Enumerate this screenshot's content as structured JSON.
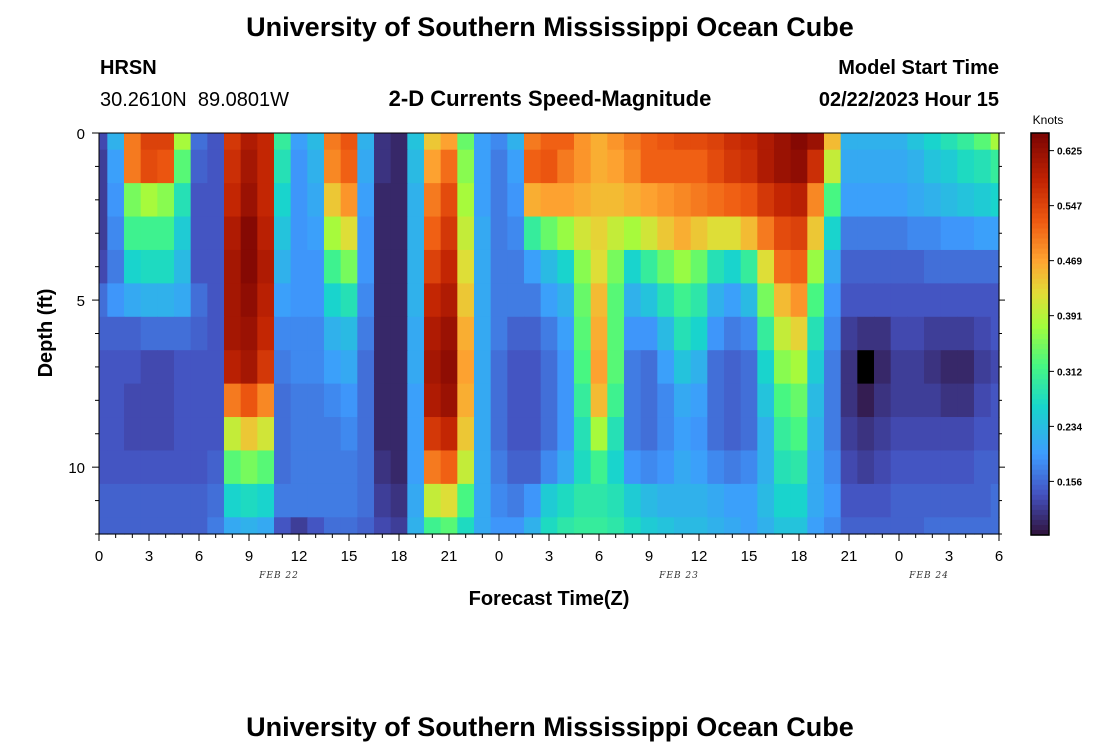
{
  "page": {
    "title_top": "University of Southern Mississippi Ocean Cube",
    "title_bottom": "University of Southern Mississippi Ocean Cube"
  },
  "station": {
    "name": "HRSN",
    "coords": "30.2610N  89.0801W"
  },
  "plot_title": "2-D Currents Speed-Magnitude",
  "model_start": {
    "label": "Model Start Time",
    "value": "02/22/2023 Hour 15"
  },
  "chart_data": {
    "type": "heatmap",
    "title": "2-D Currents Speed-Magnitude",
    "xlabel": "Forecast Time(Z)",
    "ylabel": "Depth (ft)",
    "x_tick_labels": [
      "0",
      "3",
      "6",
      "9",
      "12",
      "15",
      "18",
      "21",
      "0",
      "3",
      "6",
      "9",
      "12",
      "15",
      "18",
      "21",
      "0",
      "3",
      "6"
    ],
    "x_tick_hours": [
      0,
      3,
      6,
      9,
      12,
      15,
      18,
      21,
      24,
      27,
      30,
      33,
      36,
      39,
      42,
      45,
      48,
      51,
      54
    ],
    "date_labels": [
      {
        "text": "FEB 22",
        "hour": 12
      },
      {
        "text": "FEB 23",
        "hour": 36
      },
      {
        "text": "FEB 24",
        "hour": 51
      }
    ],
    "x_range_hours": [
      0,
      54
    ],
    "y_tick_labels": [
      "0",
      "5",
      "10"
    ],
    "y_tick_values": [
      0,
      5,
      10
    ],
    "y_range_ft": [
      0,
      12
    ],
    "colorbar": {
      "label": "Knots",
      "tick_labels": [
        "0.625",
        "0.547",
        "0.469",
        "0.391",
        "0.312",
        "0.234",
        "0.156"
      ],
      "tick_values": [
        0.625,
        0.547,
        0.469,
        0.391,
        0.312,
        0.234,
        0.156
      ],
      "range": [
        0.08,
        0.65
      ]
    },
    "grid": {
      "hours": [
        0,
        1,
        2,
        3,
        4,
        5,
        6,
        7,
        8,
        9,
        10,
        11,
        12,
        13,
        14,
        15,
        16,
        17,
        18,
        19,
        20,
        21,
        22,
        23,
        24,
        25,
        26,
        27,
        28,
        29,
        30,
        31,
        32,
        33,
        34,
        35,
        36,
        37,
        38,
        39,
        40,
        41,
        42,
        43,
        44,
        45,
        46,
        47,
        48,
        49,
        50,
        51,
        52,
        53,
        54
      ],
      "depths_ft": [
        0,
        1,
        2,
        3,
        4,
        5,
        6,
        7,
        8,
        9,
        10,
        11,
        12
      ],
      "speed_knots_note": "values[depth_index][hour_index]; see series below",
      "series": [
        {
          "depth_ft": 0,
          "values": [
            0.13,
            0.22,
            0.5,
            0.55,
            0.55,
            0.38,
            0.16,
            0.14,
            0.56,
            0.6,
            0.58,
            0.3,
            0.2,
            0.23,
            0.5,
            0.53,
            0.22,
            0.11,
            0.1,
            0.24,
            0.44,
            0.47,
            0.34,
            0.2,
            0.18,
            0.22,
            0.5,
            0.52,
            0.52,
            0.48,
            0.46,
            0.48,
            0.5,
            0.52,
            0.53,
            0.54,
            0.54,
            0.55,
            0.57,
            0.58,
            0.6,
            0.62,
            0.64,
            0.62,
            0.45,
            0.22,
            0.22,
            0.22,
            0.22,
            0.24,
            0.26,
            0.28,
            0.3,
            0.33,
            0.38
          ]
        },
        {
          "depth_ft": 1,
          "values": [
            0.12,
            0.2,
            0.5,
            0.54,
            0.53,
            0.33,
            0.15,
            0.14,
            0.57,
            0.61,
            0.58,
            0.28,
            0.19,
            0.22,
            0.49,
            0.52,
            0.21,
            0.11,
            0.1,
            0.23,
            0.47,
            0.51,
            0.36,
            0.2,
            0.17,
            0.2,
            0.52,
            0.53,
            0.5,
            0.48,
            0.46,
            0.47,
            0.49,
            0.52,
            0.52,
            0.52,
            0.52,
            0.54,
            0.56,
            0.57,
            0.6,
            0.62,
            0.63,
            0.57,
            0.4,
            0.21,
            0.21,
            0.21,
            0.21,
            0.22,
            0.24,
            0.25,
            0.27,
            0.28,
            0.3
          ]
        },
        {
          "depth_ft": 2,
          "values": [
            0.12,
            0.19,
            0.35,
            0.38,
            0.36,
            0.28,
            0.14,
            0.14,
            0.58,
            0.62,
            0.58,
            0.26,
            0.19,
            0.21,
            0.44,
            0.48,
            0.2,
            0.1,
            0.1,
            0.22,
            0.5,
            0.54,
            0.38,
            0.2,
            0.17,
            0.19,
            0.46,
            0.47,
            0.47,
            0.46,
            0.45,
            0.45,
            0.46,
            0.47,
            0.48,
            0.49,
            0.5,
            0.51,
            0.52,
            0.53,
            0.56,
            0.58,
            0.59,
            0.49,
            0.32,
            0.2,
            0.2,
            0.2,
            0.2,
            0.21,
            0.22,
            0.23,
            0.24,
            0.25,
            0.26
          ]
        },
        {
          "depth_ft": 3,
          "values": [
            0.12,
            0.18,
            0.31,
            0.31,
            0.31,
            0.25,
            0.14,
            0.14,
            0.6,
            0.64,
            0.59,
            0.24,
            0.19,
            0.2,
            0.38,
            0.42,
            0.19,
            0.1,
            0.1,
            0.22,
            0.52,
            0.56,
            0.4,
            0.21,
            0.17,
            0.18,
            0.3,
            0.34,
            0.37,
            0.41,
            0.43,
            0.4,
            0.38,
            0.41,
            0.44,
            0.46,
            0.44,
            0.42,
            0.42,
            0.45,
            0.5,
            0.54,
            0.55,
            0.44,
            0.26,
            0.17,
            0.17,
            0.17,
            0.17,
            0.18,
            0.18,
            0.19,
            0.19,
            0.2,
            0.2
          ]
        },
        {
          "depth_ft": 4,
          "values": [
            0.13,
            0.17,
            0.26,
            0.27,
            0.27,
            0.23,
            0.14,
            0.14,
            0.61,
            0.64,
            0.6,
            0.22,
            0.19,
            0.19,
            0.31,
            0.35,
            0.19,
            0.1,
            0.1,
            0.22,
            0.55,
            0.58,
            0.42,
            0.21,
            0.17,
            0.17,
            0.2,
            0.23,
            0.26,
            0.36,
            0.42,
            0.35,
            0.26,
            0.3,
            0.34,
            0.37,
            0.34,
            0.28,
            0.26,
            0.3,
            0.42,
            0.51,
            0.52,
            0.37,
            0.21,
            0.15,
            0.15,
            0.15,
            0.15,
            0.15,
            0.16,
            0.16,
            0.16,
            0.16,
            0.16
          ]
        },
        {
          "depth_ft": 5,
          "values": [
            0.16,
            0.19,
            0.21,
            0.22,
            0.22,
            0.21,
            0.16,
            0.14,
            0.61,
            0.63,
            0.59,
            0.2,
            0.19,
            0.19,
            0.26,
            0.28,
            0.18,
            0.1,
            0.1,
            0.22,
            0.58,
            0.6,
            0.44,
            0.21,
            0.17,
            0.17,
            0.17,
            0.2,
            0.22,
            0.34,
            0.45,
            0.33,
            0.22,
            0.24,
            0.28,
            0.31,
            0.29,
            0.22,
            0.2,
            0.23,
            0.35,
            0.45,
            0.48,
            0.32,
            0.19,
            0.14,
            0.14,
            0.14,
            0.14,
            0.14,
            0.14,
            0.14,
            0.14,
            0.14,
            0.14
          ]
        },
        {
          "depth_ft": 6,
          "values": [
            0.15,
            0.15,
            0.15,
            0.16,
            0.16,
            0.16,
            0.15,
            0.14,
            0.61,
            0.62,
            0.58,
            0.18,
            0.18,
            0.18,
            0.22,
            0.23,
            0.17,
            0.1,
            0.1,
            0.21,
            0.6,
            0.62,
            0.46,
            0.21,
            0.17,
            0.15,
            0.15,
            0.17,
            0.2,
            0.33,
            0.46,
            0.33,
            0.19,
            0.19,
            0.23,
            0.28,
            0.26,
            0.19,
            0.17,
            0.18,
            0.3,
            0.4,
            0.43,
            0.28,
            0.18,
            0.12,
            0.11,
            0.11,
            0.13,
            0.13,
            0.12,
            0.12,
            0.12,
            0.13,
            0.14
          ]
        },
        {
          "depth_ft": 7,
          "values": [
            0.14,
            0.14,
            0.14,
            0.13,
            0.13,
            0.14,
            0.14,
            0.14,
            0.59,
            0.61,
            0.56,
            0.17,
            0.18,
            0.18,
            0.2,
            0.21,
            0.16,
            0.1,
            0.1,
            0.21,
            0.61,
            0.63,
            0.47,
            0.21,
            0.16,
            0.14,
            0.14,
            0.16,
            0.19,
            0.32,
            0.47,
            0.33,
            0.17,
            0.16,
            0.2,
            0.24,
            0.22,
            0.16,
            0.15,
            0.16,
            0.26,
            0.36,
            0.38,
            0.25,
            0.17,
            0.11,
            0.02,
            0.1,
            0.12,
            0.12,
            0.11,
            0.1,
            0.1,
            0.12,
            0.13
          ]
        },
        {
          "depth_ft": 8,
          "values": [
            0.14,
            0.14,
            0.13,
            0.13,
            0.13,
            0.14,
            0.14,
            0.14,
            0.5,
            0.53,
            0.49,
            0.16,
            0.17,
            0.17,
            0.18,
            0.19,
            0.16,
            0.1,
            0.1,
            0.2,
            0.6,
            0.62,
            0.46,
            0.21,
            0.16,
            0.14,
            0.14,
            0.16,
            0.19,
            0.3,
            0.45,
            0.31,
            0.17,
            0.16,
            0.18,
            0.21,
            0.2,
            0.16,
            0.15,
            0.16,
            0.24,
            0.32,
            0.34,
            0.23,
            0.17,
            0.11,
            0.09,
            0.11,
            0.12,
            0.12,
            0.12,
            0.11,
            0.11,
            0.13,
            0.14
          ]
        },
        {
          "depth_ft": 9,
          "values": [
            0.14,
            0.14,
            0.13,
            0.13,
            0.13,
            0.14,
            0.14,
            0.14,
            0.4,
            0.44,
            0.41,
            0.16,
            0.17,
            0.17,
            0.17,
            0.18,
            0.16,
            0.1,
            0.1,
            0.2,
            0.56,
            0.58,
            0.44,
            0.21,
            0.16,
            0.14,
            0.14,
            0.16,
            0.19,
            0.28,
            0.38,
            0.28,
            0.17,
            0.16,
            0.18,
            0.2,
            0.19,
            0.16,
            0.15,
            0.16,
            0.22,
            0.3,
            0.32,
            0.22,
            0.17,
            0.12,
            0.11,
            0.12,
            0.13,
            0.13,
            0.13,
            0.13,
            0.13,
            0.14,
            0.14
          ]
        },
        {
          "depth_ft": 10,
          "values": [
            0.14,
            0.14,
            0.14,
            0.14,
            0.14,
            0.14,
            0.14,
            0.15,
            0.33,
            0.35,
            0.33,
            0.16,
            0.17,
            0.17,
            0.17,
            0.17,
            0.16,
            0.11,
            0.1,
            0.2,
            0.5,
            0.52,
            0.4,
            0.21,
            0.17,
            0.15,
            0.15,
            0.18,
            0.21,
            0.27,
            0.31,
            0.26,
            0.19,
            0.18,
            0.19,
            0.21,
            0.2,
            0.18,
            0.17,
            0.18,
            0.22,
            0.28,
            0.29,
            0.21,
            0.18,
            0.13,
            0.12,
            0.13,
            0.14,
            0.14,
            0.14,
            0.14,
            0.14,
            0.15,
            0.15
          ]
        },
        {
          "depth_ft": 11,
          "values": [
            0.15,
            0.15,
            0.15,
            0.15,
            0.15,
            0.15,
            0.15,
            0.16,
            0.26,
            0.27,
            0.26,
            0.17,
            0.17,
            0.17,
            0.17,
            0.17,
            0.16,
            0.12,
            0.11,
            0.21,
            0.4,
            0.42,
            0.32,
            0.21,
            0.18,
            0.17,
            0.19,
            0.25,
            0.27,
            0.29,
            0.29,
            0.28,
            0.25,
            0.23,
            0.22,
            0.22,
            0.22,
            0.21,
            0.2,
            0.2,
            0.23,
            0.26,
            0.26,
            0.21,
            0.19,
            0.14,
            0.14,
            0.14,
            0.15,
            0.15,
            0.15,
            0.15,
            0.15,
            0.15,
            0.16
          ]
        },
        {
          "depth_ft": 12,
          "values": [
            0.15,
            0.15,
            0.15,
            0.15,
            0.15,
            0.15,
            0.15,
            0.17,
            0.21,
            0.22,
            0.21,
            0.14,
            0.12,
            0.14,
            0.16,
            0.16,
            0.15,
            0.13,
            0.12,
            0.22,
            0.31,
            0.33,
            0.27,
            0.21,
            0.19,
            0.19,
            0.22,
            0.27,
            0.29,
            0.3,
            0.3,
            0.29,
            0.27,
            0.25,
            0.24,
            0.23,
            0.23,
            0.22,
            0.21,
            0.2,
            0.22,
            0.24,
            0.24,
            0.2,
            0.18,
            0.15,
            0.15,
            0.15,
            0.15,
            0.15,
            0.16,
            0.16,
            0.16,
            0.16,
            0.16
          ]
        }
      ]
    }
  }
}
